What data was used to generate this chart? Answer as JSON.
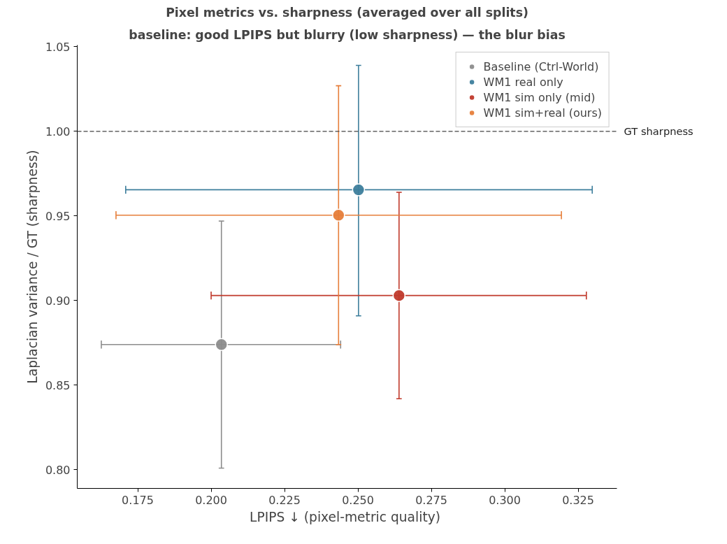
{
  "chart_data": {
    "type": "scatter",
    "title": "Pixel metrics vs. sharpness (averaged over all splits)",
    "subtitle": "baseline: good LPIPS but blurry (low sharpness) — the blur bias",
    "xlabel": "LPIPS ↓  (pixel-metric quality)",
    "ylabel": "Laplacian variance / GT (sharpness)",
    "series": [
      {
        "name": "Baseline (Ctrl-World)",
        "color": "#8c8c8c",
        "x": [
          0.2035
        ],
        "values": [
          0.874
        ],
        "xerrors": [
          [
            0.1626,
            0.2441
          ]
        ],
        "errors": [
          [
            0.801,
            0.947
          ]
        ]
      },
      {
        "name": "WM1 real only",
        "color": "#3d7e9c",
        "x": [
          0.2502
        ],
        "values": [
          0.9655
        ],
        "xerrors": [
          [
            0.1709,
            0.3298
          ]
        ],
        "errors": [
          [
            0.891,
            1.039
          ]
        ]
      },
      {
        "name": "WM1 sim only (mid)",
        "color": "#c0392b",
        "x": [
          0.264
        ],
        "values": [
          0.903
        ],
        "xerrors": [
          [
            0.2,
            0.3278
          ]
        ],
        "errors": [
          [
            0.842,
            0.964
          ]
        ]
      },
      {
        "name": "WM1 sim+real (ours)",
        "color": "#e67e3a",
        "x": [
          0.2434
        ],
        "values": [
          0.9505
        ],
        "xerrors": [
          [
            0.1676,
            0.3193
          ]
        ],
        "errors": [
          [
            0.874,
            1.027
          ]
        ]
      }
    ],
    "xlim": [
      0.1544,
      0.3382
    ],
    "ylim": [
      0.789,
      1.051
    ],
    "xticks": [
      {
        "value": 0.175,
        "label": "0.175"
      },
      {
        "value": 0.2,
        "label": "0.200"
      },
      {
        "value": 0.225,
        "label": "0.225"
      },
      {
        "value": 0.25,
        "label": "0.250"
      },
      {
        "value": 0.275,
        "label": "0.275"
      },
      {
        "value": 0.3,
        "label": "0.300"
      },
      {
        "value": 0.325,
        "label": "0.325"
      }
    ],
    "yticks": [
      {
        "value": 0.8,
        "label": "0.80"
      },
      {
        "value": 0.85,
        "label": "0.85"
      },
      {
        "value": 0.9,
        "label": "0.90"
      },
      {
        "value": 0.95,
        "label": "0.95"
      },
      {
        "value": 1.0,
        "label": "1.00"
      },
      {
        "value": 1.05,
        "label": "1.05"
      }
    ],
    "ref_lines": [
      {
        "axis": "y",
        "value": 1.0,
        "label": "GT sharpness",
        "color": "#444444",
        "line_style": "dashed"
      }
    ],
    "grid": false,
    "legend": "top right",
    "marker": "circle"
  }
}
